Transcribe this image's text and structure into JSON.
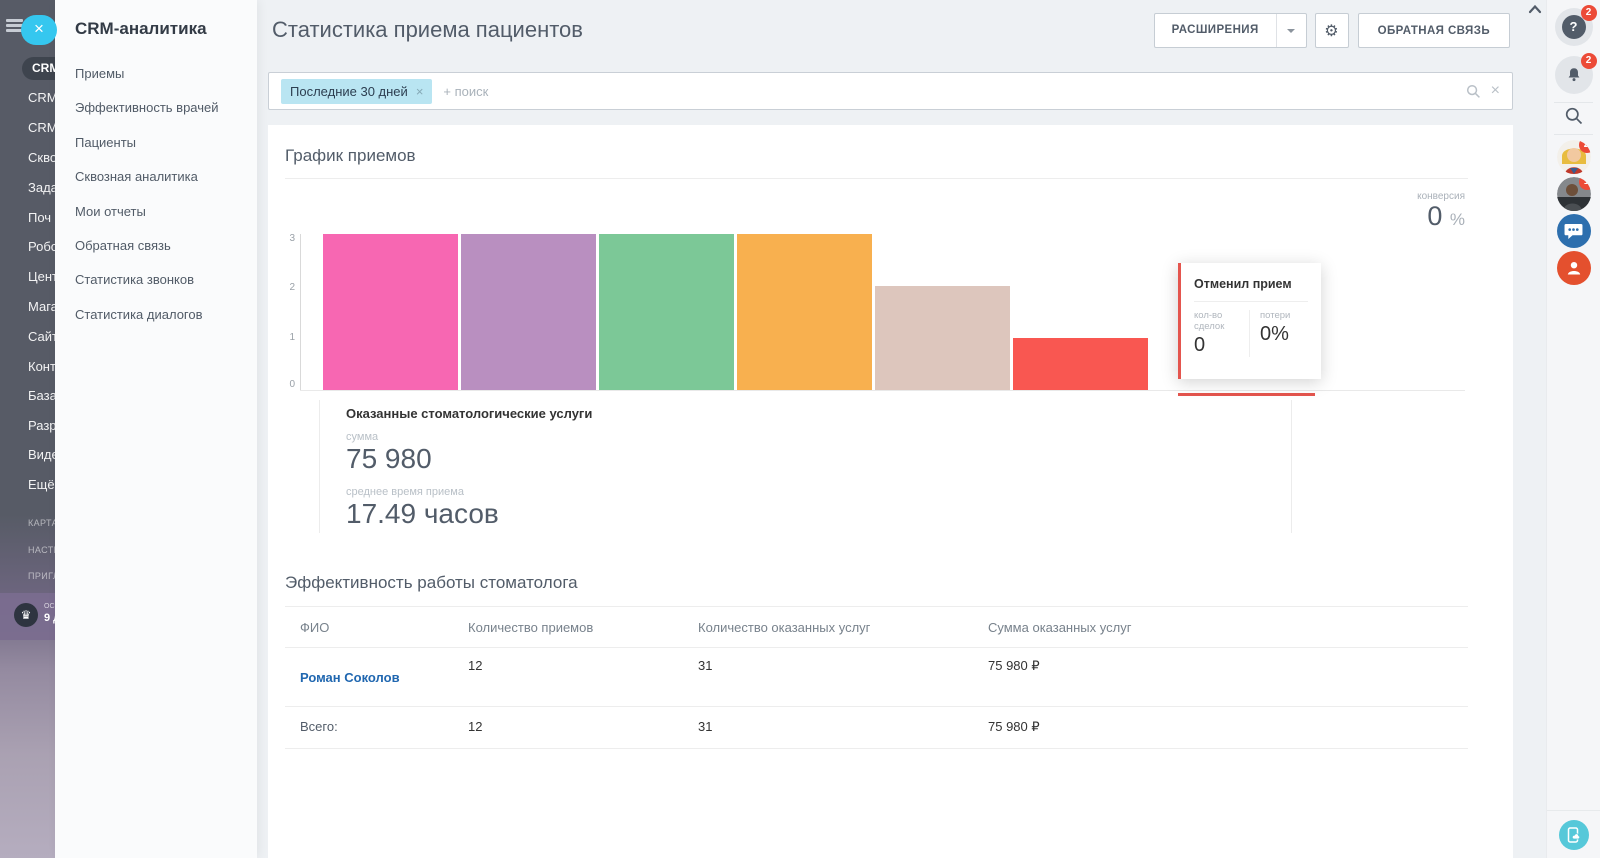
{
  "back_menu": {
    "active_item": "CRM",
    "items": [
      "CRM",
      "CRM",
      "Скво",
      "Зада",
      "Поч",
      "Робо",
      "Цент",
      "Мага",
      "Сайт",
      "Конт",
      "База",
      "Разр",
      "Виде",
      "Ещё"
    ],
    "footer_items": [
      "КАРТА",
      "НАСТР",
      "ПРИГЛ"
    ],
    "plan_line1": "ОС",
    "plan_line2": "9 д"
  },
  "menu_panel": {
    "title": "CRM-аналитика",
    "items": [
      "Приемы",
      "Эффективность врачей",
      "Пациенты",
      "Сквозная аналитика",
      "Мои отчеты",
      "Обратная связь",
      "Статистика звонков",
      "Статистика диалогов"
    ]
  },
  "header": {
    "title": "Статистика приема пациентов",
    "extensions_label": "РАСШИРЕНИЯ",
    "feedback_label": "ОБРАТНАЯ СВЯЗЬ"
  },
  "filter": {
    "tag": "Последние 30 дней",
    "placeholder": "+ поиск"
  },
  "chart_data": {
    "type": "bar",
    "title": "График приемов",
    "ylabel": "",
    "ylim": [
      0,
      3
    ],
    "y_ticks": [
      "0",
      "1",
      "2",
      "3"
    ],
    "grid": false,
    "bars": [
      {
        "value": 3,
        "color": "#f767b2"
      },
      {
        "value": 3,
        "color": "#b98fc0"
      },
      {
        "value": 3,
        "color": "#7cc897"
      },
      {
        "value": 3,
        "color": "#f8b04f"
      },
      {
        "value": 2,
        "color": "#ddc6bd"
      },
      {
        "value": 1,
        "color": "#f95751"
      },
      {
        "value": 0,
        "color": "#e4554e",
        "label": "Отменил прием"
      }
    ],
    "conversion": {
      "label": "конверсия",
      "value": "0",
      "unit": "%"
    },
    "tooltip": {
      "title": "Отменил прием",
      "fields": [
        {
          "label": "кол-во сделок",
          "value": "0"
        },
        {
          "label": "потери",
          "value": "0%"
        }
      ]
    }
  },
  "summary_panel": {
    "title": "Оказанные стоматологические услуги",
    "sum_label": "сумма",
    "sum_value": "75 980",
    "avg_label": "среднее время приема",
    "avg_value": "17.49 часов"
  },
  "table": {
    "title": "Эффективность работы стоматолога",
    "headers": [
      "ФИО",
      "Количество приемов",
      "Количество оказанных услуг",
      "Сумма оказанных услуг"
    ],
    "rows": [
      [
        "Роман Соколов",
        "12",
        "31",
        "75 980 ₽"
      ]
    ],
    "total": [
      "Всего:",
      "12",
      "31",
      "75 980 ₽"
    ]
  },
  "right_rail": {
    "badges": {
      "help": "2",
      "notifications": "2",
      "avatar1": "2",
      "avatar2": "1"
    }
  }
}
